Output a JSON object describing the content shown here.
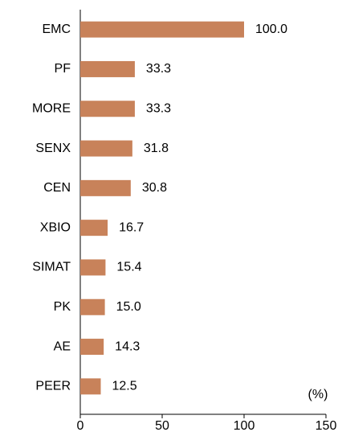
{
  "chart_data": {
    "type": "hbar",
    "categories": [
      "EMC",
      "PF",
      "MORE",
      "SENX",
      "CEN",
      "XBIO",
      "SIMAT",
      "PK",
      "AE",
      "PEER"
    ],
    "values": [
      100,
      33.3,
      33.3,
      31.8,
      30.8,
      16.7,
      15.4,
      15.0,
      14.3,
      12.5
    ],
    "value_labels": [
      "100.0",
      "33.3",
      "33.3",
      "31.8",
      "30.8",
      "16.7",
      "15.4",
      "15.0",
      "14.3",
      "12.5"
    ],
    "color": "#c8825a",
    "xlabel": "(%)",
    "xlim": [
      0,
      150
    ],
    "xticks": [
      0,
      50,
      100,
      150
    ],
    "grid": false
  }
}
